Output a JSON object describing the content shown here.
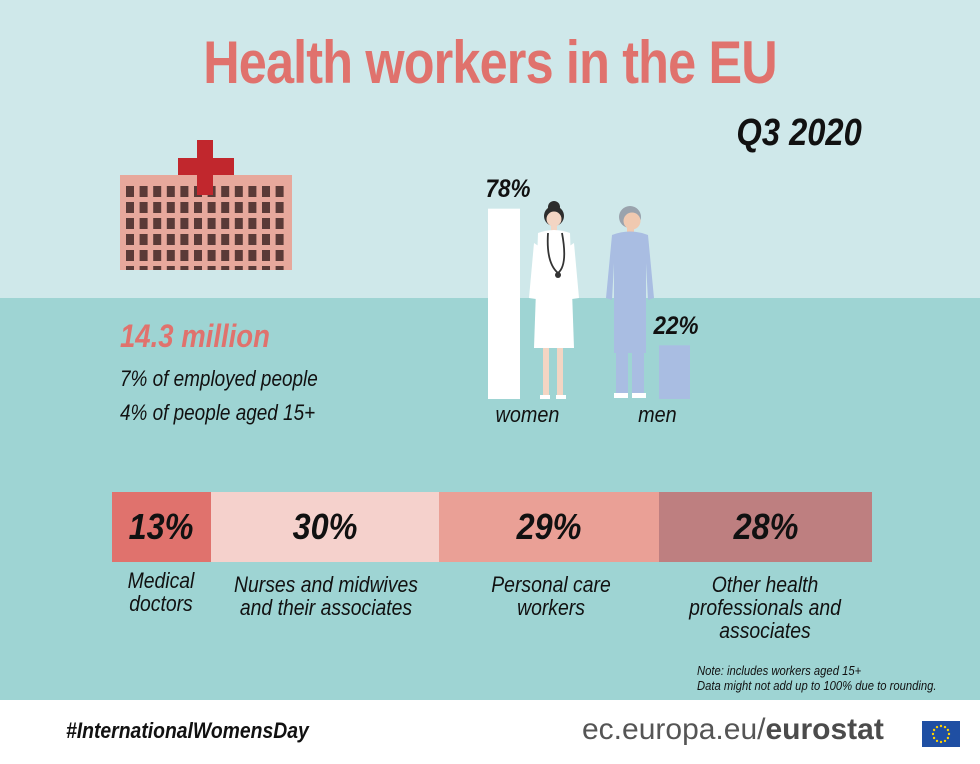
{
  "title": "Health workers in the EU",
  "subtitle": "Q3 2020",
  "total": {
    "headline": "14.3 million",
    "line1": "7% of employed people",
    "line2": "4% of people aged 15+"
  },
  "chart_data": [
    {
      "type": "bar",
      "categories": [
        "women",
        "men"
      ],
      "values": [
        78,
        22
      ],
      "unit": "%",
      "colors": [
        "#ffffff",
        "#a9bde2"
      ]
    },
    {
      "type": "bar",
      "orientation": "stacked-horizontal",
      "categories": [
        "Medical doctors",
        "Nurses and midwives and their associates",
        "Personal care workers",
        "Other health professionals and associates"
      ],
      "values": [
        13,
        30,
        29,
        28
      ],
      "unit": "%",
      "colors": [
        "#e0726d",
        "#f5d1cc",
        "#eaa096",
        "#be7f80"
      ]
    }
  ],
  "labels": {
    "women_pct": "78%",
    "men_pct": "22%",
    "women": "women",
    "men": "men",
    "seg_pct": [
      "13%",
      "30%",
      "29%",
      "28%"
    ],
    "seg_names": [
      [
        "Medical",
        "doctors"
      ],
      [
        "Nurses and  midwives",
        "and their associates"
      ],
      [
        "Personal care",
        "workers"
      ],
      [
        "Other health",
        "professionals and",
        "associates"
      ]
    ]
  },
  "note": {
    "line1": "Note: includes workers aged 15+",
    "line2": "Data might not add up to 100% due to rounding."
  },
  "footer": {
    "hashtag": "#InternationalWomensDay",
    "site_prefix": "ec.europa.eu/",
    "site_brand": "eurostat"
  },
  "icons": [
    "red-cross-icon",
    "hospital-building-icon",
    "female-doctor-icon",
    "male-nurse-icon",
    "eu-flag-icon"
  ]
}
